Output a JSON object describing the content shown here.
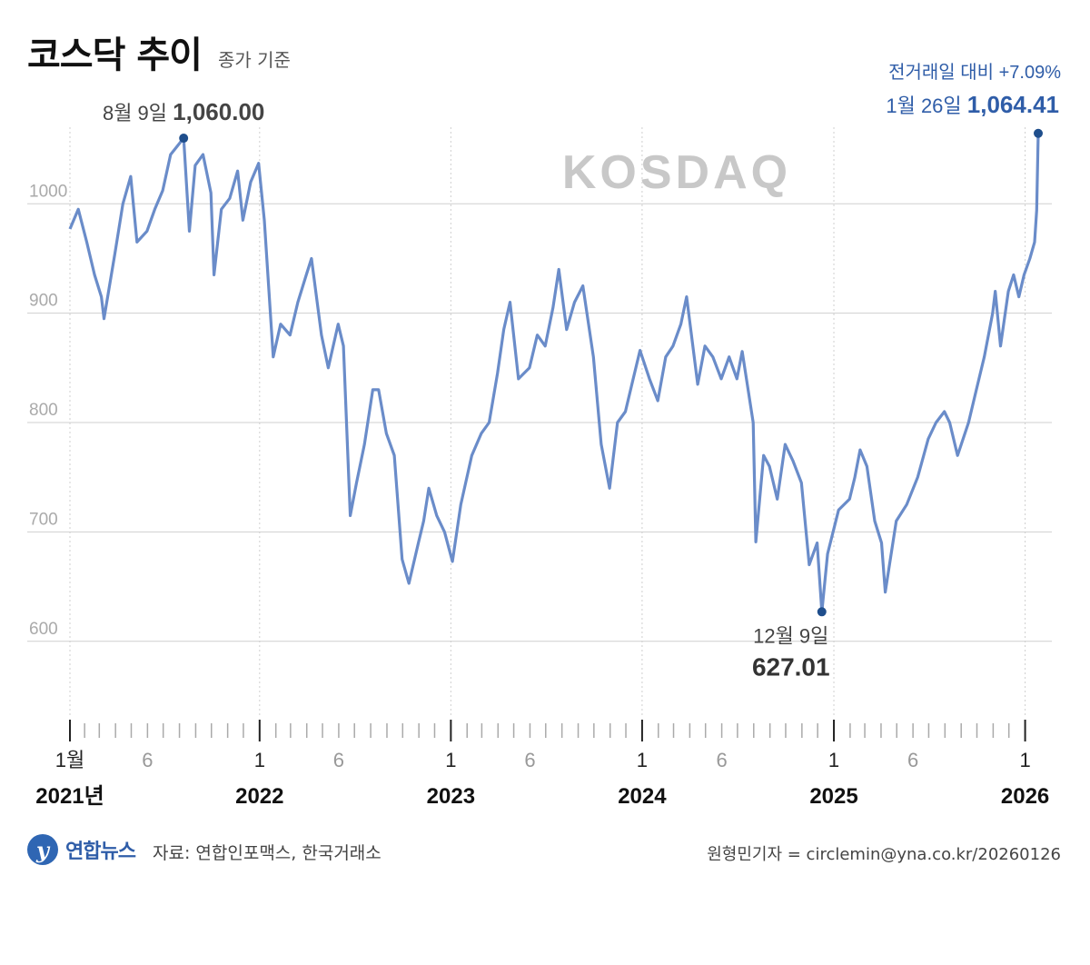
{
  "header": {
    "title": "코스닥 추이",
    "subtitle": "종가 기준"
  },
  "watermark": "KOSDAQ",
  "footer": {
    "logo_text": "연합뉴스",
    "logo_icon": "yonhap-logo-icon",
    "source": "자료: 연합인포맥스, 한국거래소",
    "credit": "원형민기자 = circlemin@yna.co.kr/20260126"
  },
  "colors": {
    "line": "#6a8cc9",
    "marker": "#1f4e8c",
    "accent": "#2f5da8",
    "grid": "#cfcfcf",
    "tick_text": "#aaaaaa"
  },
  "chart_data": {
    "type": "line",
    "title": "코스닥 추이",
    "subtitle": "종가 기준",
    "ylim": [
      550,
      1070
    ],
    "y_ticks": [
      600,
      700,
      800,
      900,
      1000
    ],
    "grid": true,
    "x_tick_labels": [
      {
        "date": "2021-01",
        "label": "1월",
        "year": "2021년"
      },
      {
        "date": "2021-06",
        "label": "6"
      },
      {
        "date": "2022-01",
        "label": "1",
        "year": "2022"
      },
      {
        "date": "2022-06",
        "label": "6"
      },
      {
        "date": "2023-01",
        "label": "1",
        "year": "2023"
      },
      {
        "date": "2023-06",
        "label": "6"
      },
      {
        "date": "2024-01",
        "label": "1",
        "year": "2024"
      },
      {
        "date": "2024-06",
        "label": "6"
      },
      {
        "date": "2025-01",
        "label": "1",
        "year": "2025"
      },
      {
        "date": "2025-06",
        "label": "6"
      },
      {
        "date": "2026-01",
        "label": "1",
        "year": "2026"
      }
    ],
    "series": [
      {
        "points": [
          [
            "2021-01-04",
            977
          ],
          [
            "2021-01-20",
            995
          ],
          [
            "2021-02-05",
            965
          ],
          [
            "2021-02-20",
            935
          ],
          [
            "2021-03-05",
            915
          ],
          [
            "2021-03-10",
            895
          ],
          [
            "2021-03-31",
            955
          ],
          [
            "2021-04-15",
            1000
          ],
          [
            "2021-04-30",
            1025
          ],
          [
            "2021-05-12",
            965
          ],
          [
            "2021-05-31",
            975
          ],
          [
            "2021-06-15",
            995
          ],
          [
            "2021-06-30",
            1012
          ],
          [
            "2021-07-15",
            1045
          ],
          [
            "2021-08-09",
            1060
          ],
          [
            "2021-08-20",
            975
          ],
          [
            "2021-08-31",
            1035
          ],
          [
            "2021-09-15",
            1045
          ],
          [
            "2021-09-30",
            1010
          ],
          [
            "2021-10-06",
            935
          ],
          [
            "2021-10-20",
            995
          ],
          [
            "2021-11-05",
            1005
          ],
          [
            "2021-11-20",
            1030
          ],
          [
            "2021-11-30",
            985
          ],
          [
            "2021-12-15",
            1020
          ],
          [
            "2021-12-30",
            1037
          ],
          [
            "2022-01-10",
            985
          ],
          [
            "2022-01-27",
            860
          ],
          [
            "2022-02-10",
            890
          ],
          [
            "2022-02-28",
            880
          ],
          [
            "2022-03-15",
            910
          ],
          [
            "2022-03-31",
            935
          ],
          [
            "2022-04-10",
            950
          ],
          [
            "2022-04-29",
            880
          ],
          [
            "2022-05-12",
            850
          ],
          [
            "2022-05-31",
            890
          ],
          [
            "2022-06-10",
            870
          ],
          [
            "2022-06-23",
            715
          ],
          [
            "2022-07-05",
            745
          ],
          [
            "2022-07-20",
            780
          ],
          [
            "2022-08-05",
            830
          ],
          [
            "2022-08-16",
            830
          ],
          [
            "2022-08-31",
            790
          ],
          [
            "2022-09-15",
            770
          ],
          [
            "2022-09-30",
            675
          ],
          [
            "2022-10-13",
            653
          ],
          [
            "2022-10-31",
            690
          ],
          [
            "2022-11-10",
            710
          ],
          [
            "2022-11-20",
            740
          ],
          [
            "2022-12-05",
            715
          ],
          [
            "2022-12-20",
            700
          ],
          [
            "2023-01-04",
            673
          ],
          [
            "2023-01-20",
            725
          ],
          [
            "2023-02-10",
            770
          ],
          [
            "2023-02-28",
            790
          ],
          [
            "2023-03-15",
            800
          ],
          [
            "2023-03-31",
            845
          ],
          [
            "2023-04-12",
            885
          ],
          [
            "2023-04-24",
            910
          ],
          [
            "2023-05-10",
            840
          ],
          [
            "2023-05-31",
            850
          ],
          [
            "2023-06-15",
            880
          ],
          [
            "2023-06-30",
            870
          ],
          [
            "2023-07-15",
            905
          ],
          [
            "2023-07-26",
            940
          ],
          [
            "2023-08-10",
            885
          ],
          [
            "2023-08-25",
            910
          ],
          [
            "2023-09-10",
            925
          ],
          [
            "2023-09-30",
            860
          ],
          [
            "2023-10-15",
            780
          ],
          [
            "2023-10-31",
            740
          ],
          [
            "2023-11-15",
            800
          ],
          [
            "2023-11-30",
            810
          ],
          [
            "2023-12-15",
            840
          ],
          [
            "2023-12-28",
            866
          ],
          [
            "2024-01-15",
            840
          ],
          [
            "2024-01-31",
            820
          ],
          [
            "2024-02-15",
            860
          ],
          [
            "2024-02-29",
            870
          ],
          [
            "2024-03-15",
            890
          ],
          [
            "2024-03-26",
            915
          ],
          [
            "2024-04-16",
            835
          ],
          [
            "2024-04-30",
            870
          ],
          [
            "2024-05-15",
            860
          ],
          [
            "2024-05-31",
            840
          ],
          [
            "2024-06-15",
            860
          ],
          [
            "2024-06-30",
            840
          ],
          [
            "2024-07-10",
            865
          ],
          [
            "2024-07-31",
            800
          ],
          [
            "2024-08-05",
            691
          ],
          [
            "2024-08-20",
            770
          ],
          [
            "2024-08-31",
            760
          ],
          [
            "2024-09-15",
            730
          ],
          [
            "2024-09-30",
            780
          ],
          [
            "2024-10-15",
            765
          ],
          [
            "2024-10-31",
            745
          ],
          [
            "2024-11-15",
            670
          ],
          [
            "2024-11-30",
            690
          ],
          [
            "2024-12-09",
            627
          ],
          [
            "2024-12-20",
            680
          ],
          [
            "2025-01-10",
            720
          ],
          [
            "2025-01-31",
            730
          ],
          [
            "2025-02-10",
            750
          ],
          [
            "2025-02-20",
            775
          ],
          [
            "2025-03-05",
            760
          ],
          [
            "2025-03-20",
            710
          ],
          [
            "2025-04-02",
            690
          ],
          [
            "2025-04-09",
            645
          ],
          [
            "2025-04-30",
            710
          ],
          [
            "2025-05-20",
            725
          ],
          [
            "2025-06-10",
            750
          ],
          [
            "2025-06-30",
            785
          ],
          [
            "2025-07-15",
            800
          ],
          [
            "2025-07-31",
            810
          ],
          [
            "2025-08-10",
            800
          ],
          [
            "2025-08-25",
            770
          ],
          [
            "2025-09-15",
            800
          ],
          [
            "2025-09-30",
            830
          ],
          [
            "2025-10-15",
            860
          ],
          [
            "2025-10-31",
            900
          ],
          [
            "2025-11-05",
            920
          ],
          [
            "2025-11-15",
            870
          ],
          [
            "2025-11-30",
            920
          ],
          [
            "2025-12-10",
            935
          ],
          [
            "2025-12-20",
            915
          ],
          [
            "2025-12-30",
            935
          ],
          [
            "2026-01-10",
            950
          ],
          [
            "2026-01-19",
            965
          ],
          [
            "2026-01-23",
            994
          ],
          [
            "2026-01-26",
            1064.41
          ]
        ]
      }
    ],
    "annotations": [
      {
        "date": "2021-08-09",
        "value": 1060.0,
        "label": "8월 9일",
        "value_label": "1,060.00"
      },
      {
        "date": "2024-12-09",
        "value": 627.01,
        "label": "12월 9일",
        "value_label": "627.01"
      },
      {
        "date": "2026-01-26",
        "value": 1064.41,
        "label": "1월 26일",
        "value_label": "1,064.41",
        "note": "전거래일 대비 +7.09%"
      }
    ]
  }
}
